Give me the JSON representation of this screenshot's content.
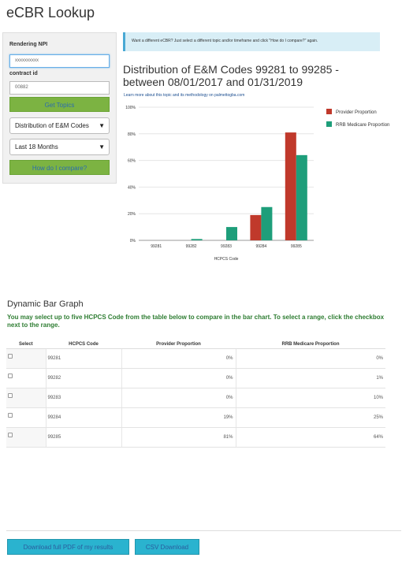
{
  "app": {
    "title": "eCBR Lookup"
  },
  "form": {
    "npi_label": "Rendering NPI",
    "npi_value": "xxxxxxxxxx",
    "contract_label": "contract id",
    "contract_value": "00882",
    "get_topics_label": "Get Topics",
    "topic_selected": "Distribution of E&M Codes",
    "timeframe_selected": "Last 18 Months",
    "compare_label": "How do I compare?"
  },
  "info": {
    "text": "Want a different eCBR? Just select a different topic and/or timeframe and click \"How do I compare?\" again."
  },
  "main": {
    "title": "Distribution of E&M Codes 99281 to 99285 - between 08/01/2017 and 01/31/2019",
    "learn_more": "Learn more about this topic and its methodology on palmettogba.com"
  },
  "chart_data": {
    "type": "bar",
    "categories": [
      "99281",
      "99282",
      "99283",
      "99284",
      "99285"
    ],
    "series": [
      {
        "name": "Provider Proportion",
        "values": [
          0,
          0,
          0,
          19,
          81
        ],
        "color": "#c0392b"
      },
      {
        "name": "RRB Medicare Proportion",
        "values": [
          0,
          1,
          10,
          25,
          64
        ],
        "color": "#1e9e7a"
      }
    ],
    "y_ticks": [
      "0%",
      "20%",
      "40%",
      "60%",
      "80%",
      "100%"
    ],
    "xlabel": "HCPCS Code",
    "ylabel": "",
    "ylim": [
      0,
      100
    ],
    "legend_position": "right"
  },
  "dynamic": {
    "title": "Dynamic Bar Graph",
    "note": "You may select up to five HCPCS Code from the table below to compare in the bar chart. To select a range, click the checkbox next to the range."
  },
  "table": {
    "headers": [
      "Select",
      "HCPCS Code",
      "Provider Proportion",
      "RRB Medicare Proportion"
    ],
    "rows": [
      {
        "code": "99281",
        "provider": "0%",
        "rrb": "0%"
      },
      {
        "code": "99282",
        "provider": "0%",
        "rrb": "1%"
      },
      {
        "code": "99283",
        "provider": "0%",
        "rrb": "10%"
      },
      {
        "code": "99284",
        "provider": "19%",
        "rrb": "25%"
      },
      {
        "code": "99285",
        "provider": "81%",
        "rrb": "64%"
      }
    ]
  },
  "footer": {
    "pdf_label": "Download full PDF of my results",
    "csv_label": "CSV Download"
  },
  "icons": {
    "dropdown": "chevron-down-icon",
    "checkbox": "checkbox-icon"
  }
}
